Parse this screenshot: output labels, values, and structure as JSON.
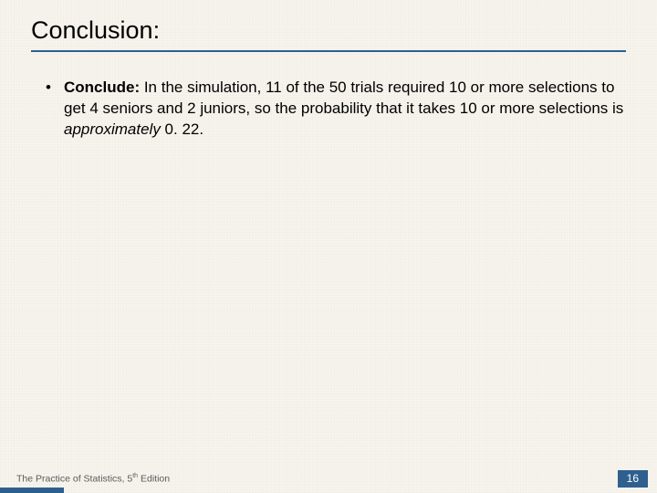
{
  "slide": {
    "title": "Conclusion:",
    "bullet": {
      "lead": "Conclude:",
      "body_before_ital": " In the simulation, 11 of the 50 trials required 10 or more selections to get 4 seniors and 2 juniors, so the probability that it takes 10 or more selections is ",
      "ital": "approximately",
      "body_after_ital": " 0. 22."
    }
  },
  "footer": {
    "book_prefix": "The Practice of Statistics, 5",
    "book_sup": "th",
    "book_suffix": " Edition",
    "page": "16"
  },
  "colors": {
    "accent": "#2f5f8f",
    "background": "#f7f4ed",
    "text": "#000000",
    "footer_text": "#5a5a5a"
  }
}
